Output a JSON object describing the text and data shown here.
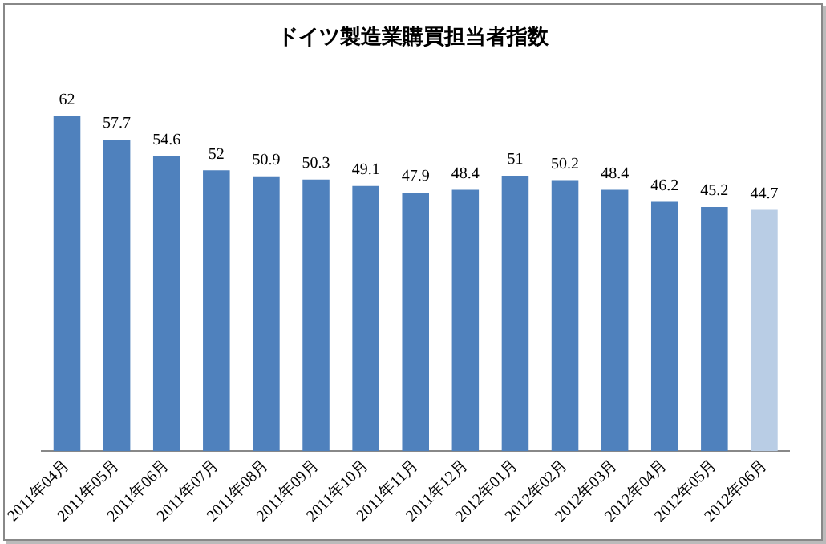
{
  "chart_data": {
    "type": "bar",
    "title": "ドイツ製造業購買担当者指数",
    "categories": [
      "2011年04月",
      "2011年05月",
      "2011年06月",
      "2011年07月",
      "2011年08月",
      "2011年09月",
      "2011年10月",
      "2011年11月",
      "2011年12月",
      "2012年01月",
      "2012年02月",
      "2012年03月",
      "2012年04月",
      "2012年05月",
      "2012年06月"
    ],
    "values": [
      62,
      57.7,
      54.6,
      52,
      50.9,
      50.3,
      49.1,
      47.9,
      48.4,
      51,
      50.2,
      48.4,
      46.2,
      45.2,
      44.7
    ],
    "colors": [
      "#4f81bd",
      "#4f81bd",
      "#4f81bd",
      "#4f81bd",
      "#4f81bd",
      "#4f81bd",
      "#4f81bd",
      "#4f81bd",
      "#4f81bd",
      "#4f81bd",
      "#4f81bd",
      "#4f81bd",
      "#4f81bd",
      "#4f81bd",
      "#b9cde5"
    ],
    "data_labels": true,
    "grid": false,
    "legend": false
  }
}
